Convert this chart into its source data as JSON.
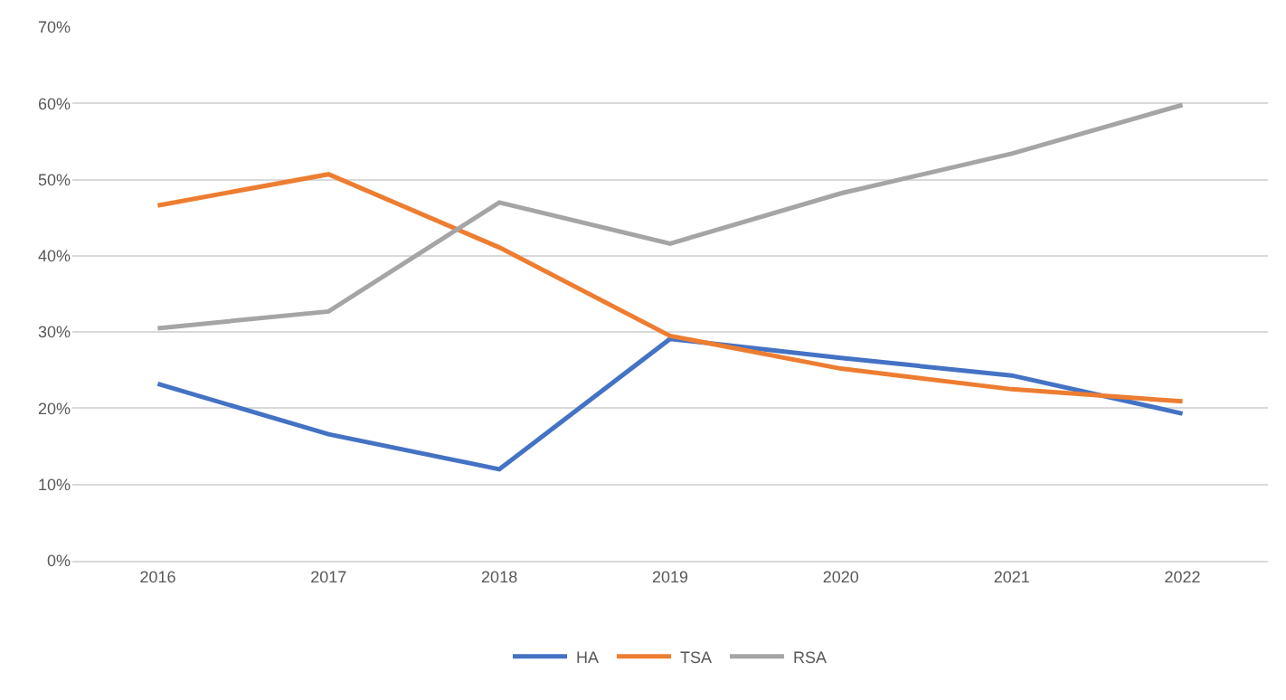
{
  "chart_data": {
    "type": "line",
    "categories": [
      "2016",
      "2017",
      "2018",
      "2019",
      "2020",
      "2021",
      "2022"
    ],
    "series": [
      {
        "name": "HA",
        "color": "#4472c4",
        "values": [
          23.2,
          16.6,
          12.0,
          29.1,
          26.6,
          24.3,
          19.3
        ]
      },
      {
        "name": "TSA",
        "color": "#ed7d31",
        "values": [
          46.6,
          50.7,
          41.1,
          29.5,
          25.2,
          22.5,
          20.9
        ]
      },
      {
        "name": "RSA",
        "color": "#a5a5a5",
        "values": [
          30.5,
          32.7,
          47.0,
          41.6,
          48.2,
          53.4,
          59.8
        ]
      }
    ],
    "ylim": [
      0,
      70
    ],
    "yticks": [
      {
        "value": 0,
        "label": "0%"
      },
      {
        "value": 10,
        "label": "10%"
      },
      {
        "value": 20,
        "label": "20%"
      },
      {
        "value": 30,
        "label": "30%"
      },
      {
        "value": 40,
        "label": "40%"
      },
      {
        "value": 50,
        "label": "50%"
      },
      {
        "value": 60,
        "label": "60%"
      },
      {
        "value": 70,
        "label": "70%"
      }
    ],
    "grid": "y",
    "legend": "bottom",
    "marker": "none",
    "line_style": "solid"
  }
}
